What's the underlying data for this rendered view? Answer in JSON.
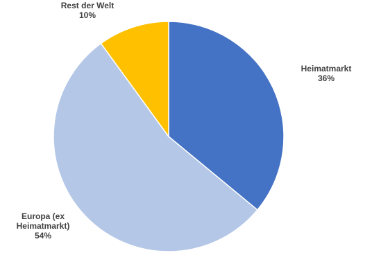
{
  "chart_data": {
    "type": "pie",
    "title": "",
    "slices": [
      {
        "label_lines": [
          "Heimatmarkt"
        ],
        "pct_label": "36%",
        "value": 36,
        "color": "#4472C4"
      },
      {
        "label_lines": [
          "Europa (ex",
          "Heimatmarkt)"
        ],
        "pct_label": "54%",
        "value": 54,
        "color": "#B4C7E7"
      },
      {
        "label_lines": [
          "Rest der Welt"
        ],
        "pct_label": "10%",
        "value": 10,
        "color": "#FFC000"
      }
    ],
    "start_angle": "12 o'clock",
    "direction": "clockwise",
    "legend": "none"
  }
}
